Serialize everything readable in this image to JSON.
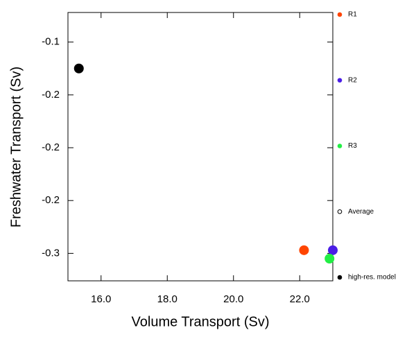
{
  "chart_data": {
    "type": "scatter",
    "xlabel": "Volume Transport (Sv)",
    "ylabel": "Freshwater Transport (Sv)",
    "xlim": [
      15,
      23
    ],
    "xticks": [
      {
        "value": 16,
        "label": "16.0"
      },
      {
        "value": 18,
        "label": "18.0"
      },
      {
        "value": 20,
        "label": "20.0"
      },
      {
        "value": 22,
        "label": "22.0"
      }
    ],
    "ylim": [
      -0.326,
      -0.072
    ],
    "yticks": [
      {
        "value": -0.1,
        "label": "-0.1"
      },
      {
        "value": -0.15,
        "label": "-0.2"
      },
      {
        "value": -0.2,
        "label": "-0.2"
      },
      {
        "value": -0.25,
        "label": "-0.2"
      },
      {
        "value": -0.3,
        "label": "-0.3"
      }
    ],
    "legend": "right",
    "series": [
      {
        "name": "R1",
        "color": "#ff4500",
        "x": [
          22.13
        ],
        "y": [
          -0.297
        ]
      },
      {
        "name": "R2",
        "color": "#4b1ee6",
        "x": [
          23.0
        ],
        "y": [
          -0.297
        ]
      },
      {
        "name": "R3",
        "color": "#22ee44",
        "x": [
          22.9
        ],
        "y": [
          -0.305
        ]
      },
      {
        "name": "Average",
        "color": "#000000",
        "x": [],
        "y": []
      },
      {
        "name": "high-res. model",
        "color": "#000000",
        "x": [
          15.33
        ],
        "y": [
          -0.125
        ]
      }
    ]
  }
}
